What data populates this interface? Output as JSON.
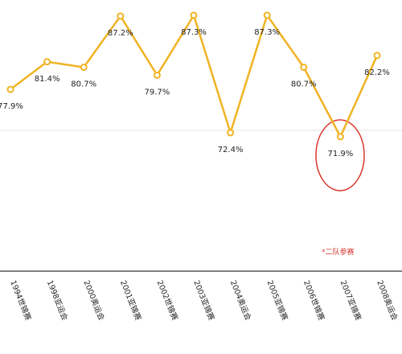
{
  "chart_data": {
    "type": "line",
    "categories": [
      "1994世锦赛",
      "1998亚运会",
      "2000奥运会",
      "2001亚锦赛",
      "2002世锦赛",
      "2003亚锦赛",
      "2004奥运会",
      "2005亚锦赛",
      "2006世锦赛",
      "2007亚锦赛",
      "2008奥运会"
    ],
    "series": [
      {
        "color": "#f0b323",
        "values": [
          77.9,
          81.4,
          80.7,
          87.2,
          79.7,
          87.3,
          72.4,
          87.3,
          80.7,
          71.9,
          82.2
        ],
        "value_labels": [
          "77.9%",
          "81.4%",
          "80.7%",
          "87.2%",
          "79.7%",
          "87.3%",
          "72.4%",
          "87.3%",
          "80.7%",
          "71.9%",
          "82.2%"
        ]
      }
    ],
    "ylim": [
      60,
      90
    ],
    "annotation": "*二队参赛"
  }
}
